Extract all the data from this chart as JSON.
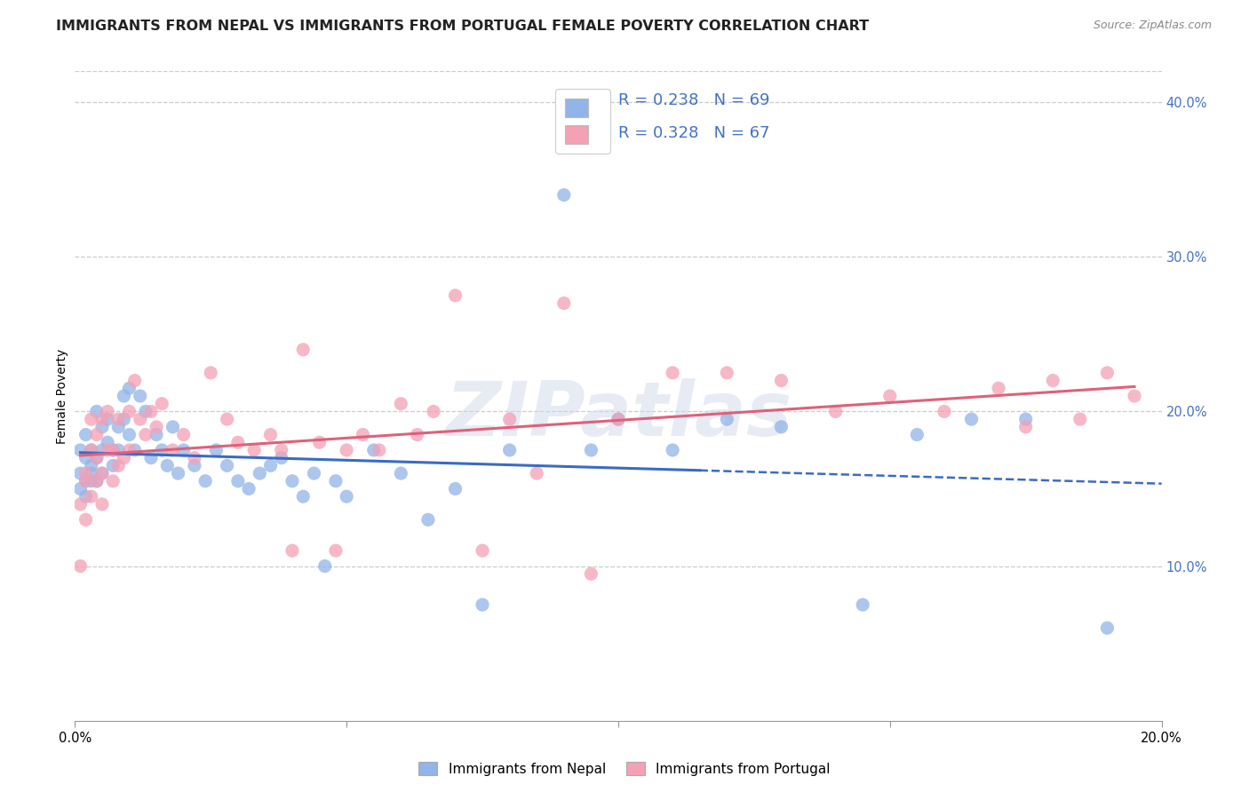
{
  "title": "IMMIGRANTS FROM NEPAL VS IMMIGRANTS FROM PORTUGAL FEMALE POVERTY CORRELATION CHART",
  "source": "Source: ZipAtlas.com",
  "ylabel": "Female Poverty",
  "xlim": [
    0.0,
    0.2
  ],
  "ylim": [
    0.0,
    0.42
  ],
  "xtick_positions": [
    0.0,
    0.05,
    0.1,
    0.15,
    0.2
  ],
  "xticklabels": [
    "0.0%",
    "",
    "",
    "",
    "20.0%"
  ],
  "yticks_right": [
    0.1,
    0.2,
    0.3,
    0.4
  ],
  "ytick_labels_right": [
    "10.0%",
    "20.0%",
    "30.0%",
    "40.0%"
  ],
  "nepal_color": "#92b4e8",
  "portugal_color": "#f4a0b5",
  "nepal_line_color": "#3a6bc4",
  "portugal_line_color": "#e0607a",
  "nepal_R": 0.238,
  "nepal_N": 69,
  "portugal_R": 0.328,
  "portugal_N": 67,
  "legend_label_nepal": "Immigrants from Nepal",
  "legend_label_portugal": "Immigrants from Portugal",
  "nepal_scatter_x": [
    0.001,
    0.001,
    0.001,
    0.002,
    0.002,
    0.002,
    0.002,
    0.003,
    0.003,
    0.003,
    0.003,
    0.004,
    0.004,
    0.004,
    0.005,
    0.005,
    0.005,
    0.006,
    0.006,
    0.007,
    0.007,
    0.008,
    0.008,
    0.009,
    0.009,
    0.01,
    0.01,
    0.011,
    0.012,
    0.013,
    0.014,
    0.015,
    0.016,
    0.017,
    0.018,
    0.019,
    0.02,
    0.022,
    0.024,
    0.026,
    0.028,
    0.03,
    0.032,
    0.034,
    0.036,
    0.038,
    0.04,
    0.042,
    0.044,
    0.046,
    0.048,
    0.05,
    0.055,
    0.06,
    0.065,
    0.07,
    0.075,
    0.08,
    0.09,
    0.095,
    0.1,
    0.11,
    0.12,
    0.13,
    0.145,
    0.155,
    0.165,
    0.175,
    0.19
  ],
  "nepal_scatter_y": [
    0.175,
    0.16,
    0.15,
    0.185,
    0.17,
    0.155,
    0.145,
    0.165,
    0.155,
    0.175,
    0.16,
    0.2,
    0.17,
    0.155,
    0.19,
    0.175,
    0.16,
    0.195,
    0.18,
    0.175,
    0.165,
    0.19,
    0.175,
    0.21,
    0.195,
    0.215,
    0.185,
    0.175,
    0.21,
    0.2,
    0.17,
    0.185,
    0.175,
    0.165,
    0.19,
    0.16,
    0.175,
    0.165,
    0.155,
    0.175,
    0.165,
    0.155,
    0.15,
    0.16,
    0.165,
    0.17,
    0.155,
    0.145,
    0.16,
    0.1,
    0.155,
    0.145,
    0.175,
    0.16,
    0.13,
    0.15,
    0.075,
    0.175,
    0.34,
    0.175,
    0.195,
    0.175,
    0.195,
    0.19,
    0.075,
    0.185,
    0.195,
    0.195,
    0.06
  ],
  "portugal_scatter_x": [
    0.001,
    0.001,
    0.002,
    0.002,
    0.002,
    0.003,
    0.003,
    0.003,
    0.004,
    0.004,
    0.004,
    0.005,
    0.005,
    0.005,
    0.006,
    0.006,
    0.007,
    0.007,
    0.008,
    0.008,
    0.009,
    0.01,
    0.01,
    0.011,
    0.012,
    0.013,
    0.014,
    0.015,
    0.016,
    0.018,
    0.02,
    0.022,
    0.025,
    0.028,
    0.03,
    0.033,
    0.036,
    0.038,
    0.04,
    0.042,
    0.045,
    0.048,
    0.05,
    0.053,
    0.056,
    0.06,
    0.063,
    0.066,
    0.07,
    0.075,
    0.08,
    0.085,
    0.09,
    0.095,
    0.1,
    0.11,
    0.12,
    0.13,
    0.14,
    0.15,
    0.16,
    0.17,
    0.175,
    0.18,
    0.185,
    0.19,
    0.195
  ],
  "portugal_scatter_y": [
    0.1,
    0.14,
    0.13,
    0.16,
    0.155,
    0.145,
    0.175,
    0.195,
    0.155,
    0.17,
    0.185,
    0.14,
    0.16,
    0.195,
    0.175,
    0.2,
    0.155,
    0.175,
    0.165,
    0.195,
    0.17,
    0.2,
    0.175,
    0.22,
    0.195,
    0.185,
    0.2,
    0.19,
    0.205,
    0.175,
    0.185,
    0.17,
    0.225,
    0.195,
    0.18,
    0.175,
    0.185,
    0.175,
    0.11,
    0.24,
    0.18,
    0.11,
    0.175,
    0.185,
    0.175,
    0.205,
    0.185,
    0.2,
    0.275,
    0.11,
    0.195,
    0.16,
    0.27,
    0.095,
    0.195,
    0.225,
    0.225,
    0.22,
    0.2,
    0.21,
    0.2,
    0.215,
    0.19,
    0.22,
    0.195,
    0.225,
    0.21
  ],
  "watermark": "ZIPatlas",
  "grid_color": "#cccccc",
  "background_color": "#ffffff",
  "title_fontsize": 11.5,
  "axis_label_fontsize": 10,
  "tick_fontsize": 10.5,
  "legend_fontsize": 13,
  "right_tick_color": "#4472c4"
}
